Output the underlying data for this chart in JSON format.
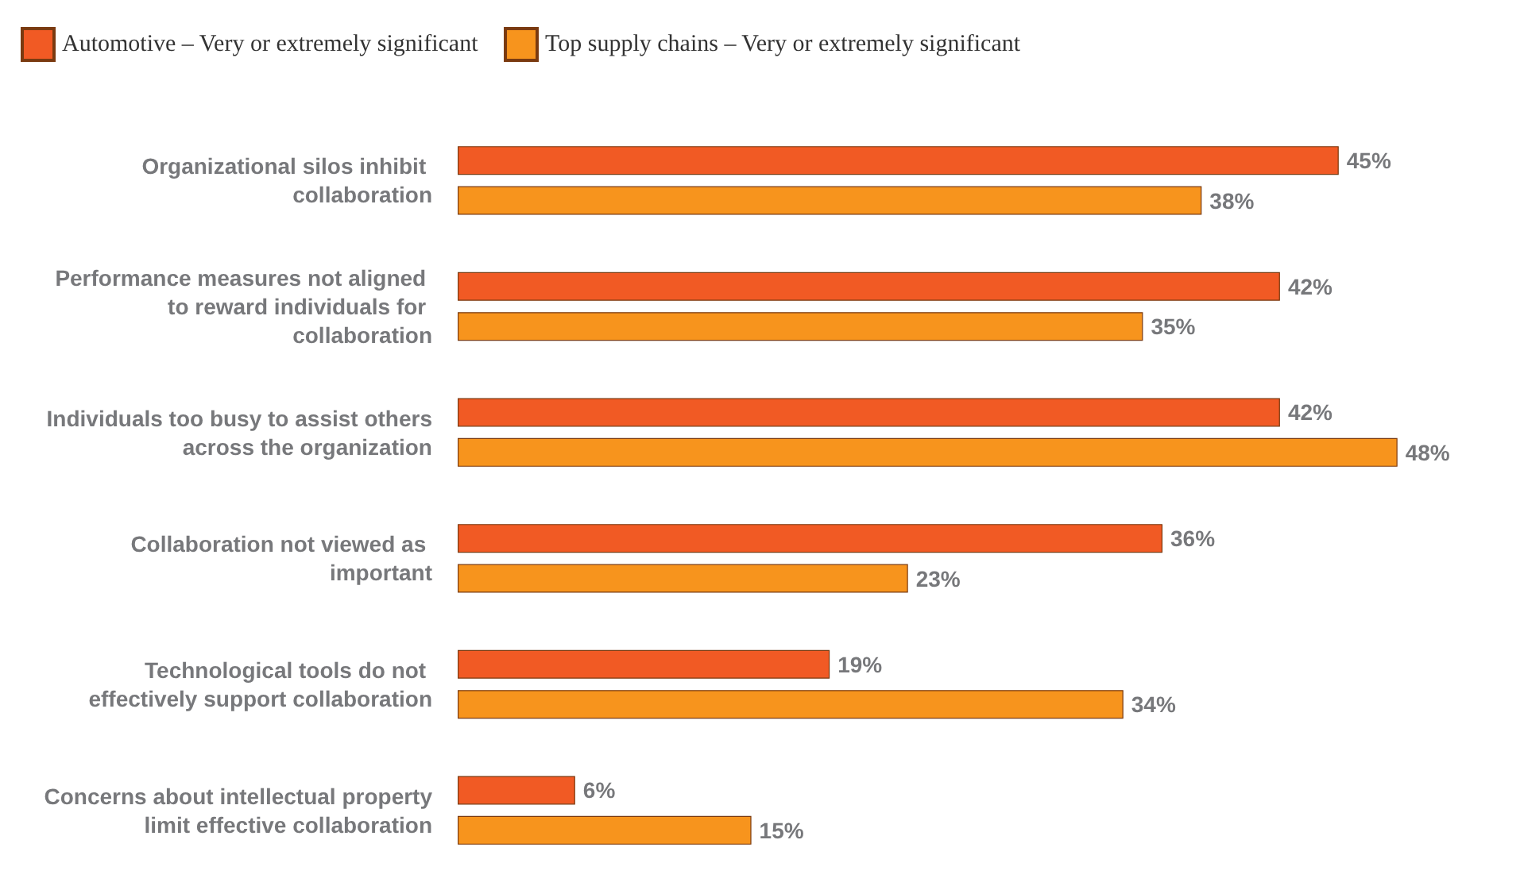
{
  "chart_data": {
    "type": "bar",
    "orientation": "horizontal",
    "legend": "top left",
    "categories": [
      "Organizational silos inhibit collaboration",
      "Performance measures not aligned to reward individuals for collaboration",
      "Individuals too busy to assist others across the organization",
      "Collaboration not viewed as important",
      "Technological tools do not effectively support collaboration",
      "Concerns about intellectual property limit effective collaboration"
    ],
    "series": [
      {
        "name": "Automotive – Very or extremely significant",
        "color": "#f15a24",
        "values": [
          45,
          42,
          42,
          36,
          19,
          6
        ],
        "value_labels": [
          "45%",
          "42%",
          "42%",
          "36%",
          "19%",
          "6%"
        ]
      },
      {
        "name": "Top supply chains – Very or extremely significant",
        "color": "#f7941d",
        "values": [
          38,
          35,
          48,
          23,
          34,
          15
        ],
        "value_labels": [
          "38%",
          "35%",
          "48%",
          "23%",
          "34%",
          "15%"
        ]
      }
    ]
  }
}
